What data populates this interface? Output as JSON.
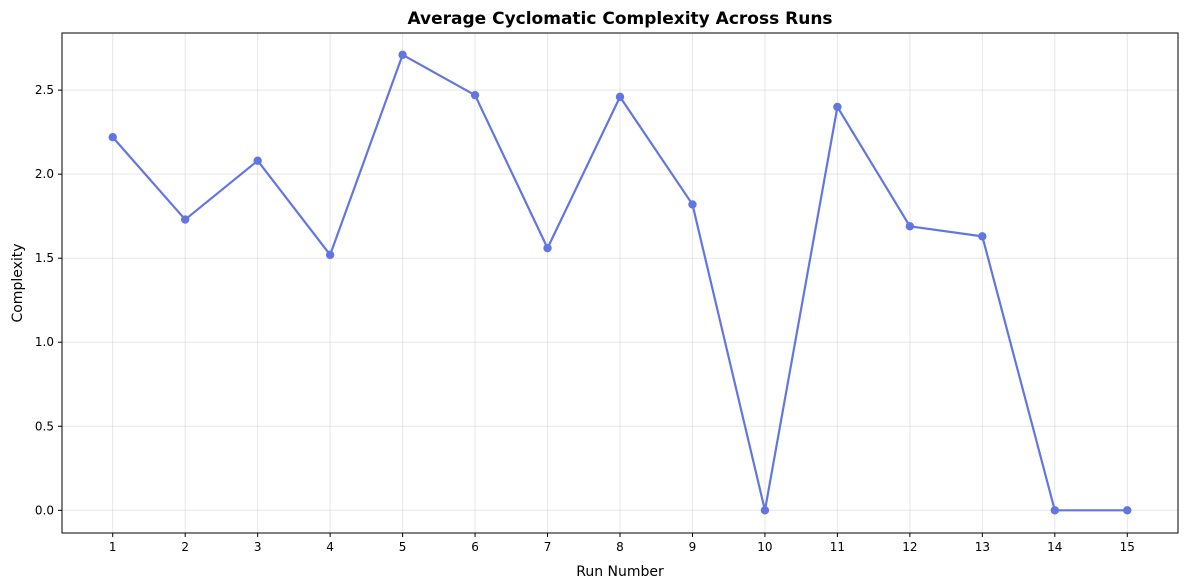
{
  "chart_data": {
    "type": "line",
    "title": "Average Cyclomatic Complexity Across Runs",
    "xlabel": "Run Number",
    "ylabel": "Complexity",
    "x": [
      1,
      2,
      3,
      4,
      5,
      6,
      7,
      8,
      9,
      10,
      11,
      12,
      13,
      14,
      15
    ],
    "series": [
      {
        "values": [
          2.22,
          1.73,
          2.08,
          1.52,
          2.71,
          2.47,
          1.56,
          2.46,
          1.82,
          0.0,
          2.4,
          1.69,
          1.63,
          0.0,
          0.0
        ],
        "color": "#6276e2"
      }
    ],
    "xlim": [
      0.3,
      15.7
    ],
    "ylim": [
      -0.135,
      2.84
    ],
    "xticks": [
      "1",
      "2",
      "3",
      "4",
      "5",
      "6",
      "7",
      "8",
      "9",
      "10",
      "11",
      "12",
      "13",
      "14",
      "15"
    ],
    "yticks": [
      "0.0",
      "0.5",
      "1.0",
      "1.5",
      "2.0",
      "2.5"
    ],
    "grid": true
  }
}
